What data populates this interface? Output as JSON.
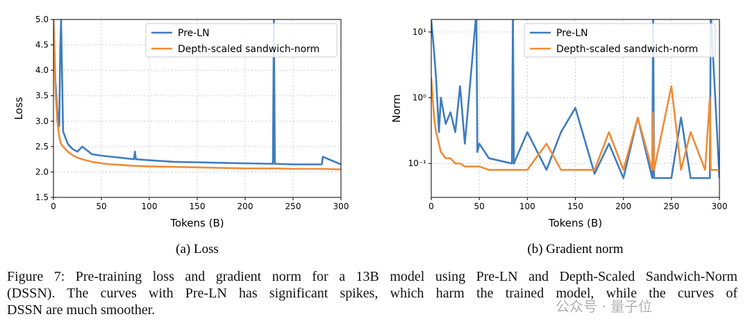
{
  "chart_data": [
    {
      "type": "line",
      "caption": "(a) Loss",
      "xlabel": "Tokens (B)",
      "ylabel": "Loss",
      "x": [
        0,
        2,
        4,
        6,
        7,
        8,
        10,
        15,
        20,
        25,
        30,
        40,
        50,
        60,
        70,
        84,
        85,
        86,
        100,
        125,
        150,
        175,
        200,
        229,
        230,
        231,
        250,
        275,
        280,
        281,
        300
      ],
      "series": [
        {
          "name": "Pre-LN",
          "color": "#3f7cbf",
          "values": [
            5.0,
            3.8,
            3.2,
            2.9,
            4.4,
            5.0,
            2.8,
            2.55,
            2.45,
            2.4,
            2.5,
            2.35,
            2.32,
            2.3,
            2.28,
            2.25,
            2.4,
            2.25,
            2.23,
            2.2,
            2.19,
            2.18,
            2.17,
            2.16,
            5.0,
            2.16,
            2.15,
            2.15,
            2.15,
            2.3,
            2.15
          ]
        },
        {
          "name": "Depth-scaled sandwich-norm",
          "color": "#ef8c36",
          "values": [
            5.0,
            3.6,
            3.0,
            2.7,
            2.6,
            2.55,
            2.5,
            2.4,
            2.33,
            2.28,
            2.25,
            2.2,
            2.17,
            2.15,
            2.14,
            2.12,
            2.12,
            2.12,
            2.11,
            2.1,
            2.09,
            2.08,
            2.07,
            2.07,
            2.07,
            2.07,
            2.06,
            2.06,
            2.06,
            2.06,
            2.05
          ]
        }
      ],
      "xlim": [
        0,
        300
      ],
      "xticks": [
        0,
        50,
        100,
        150,
        200,
        250,
        300
      ],
      "ylim": [
        1.5,
        5.0
      ],
      "yticks": [
        1.5,
        {
          "value": 2,
          "label": "2.0"
        },
        2.5,
        {
          "value": 3,
          "label": "3.0"
        },
        3.5,
        {
          "value": 4,
          "label": "4.0"
        },
        4.5,
        {
          "value": 5,
          "label": "5.0"
        }
      ],
      "yscale": "linear",
      "grid": true,
      "legend": "upper right"
    },
    {
      "type": "line",
      "caption": "(b) Gradient norm",
      "xlabel": "Tokens (B)",
      "ylabel": "Norm",
      "x": [
        0,
        3,
        5,
        8,
        10,
        15,
        20,
        25,
        30,
        35,
        47,
        48,
        50,
        60,
        84,
        85,
        86,
        100,
        120,
        135,
        150,
        170,
        185,
        200,
        215,
        230,
        231,
        232,
        250,
        260,
        270,
        285,
        290,
        291,
        300
      ],
      "series": [
        {
          "name": "Pre-LN",
          "color": "#3f7cbf",
          "values": [
            15,
            5,
            2,
            0.3,
            1,
            0.4,
            0.6,
            0.3,
            1.5,
            0.2,
            20,
            0.15,
            0.2,
            0.12,
            0.1,
            20,
            0.1,
            0.3,
            0.08,
            0.3,
            0.7,
            0.07,
            0.2,
            0.06,
            0.5,
            0.06,
            20,
            0.06,
            0.06,
            0.5,
            0.06,
            0.06,
            0.06,
            20,
            0.06
          ]
        },
        {
          "name": "Depth-scaled sandwich-norm",
          "color": "#ef8c36",
          "values": [
            2,
            0.5,
            0.3,
            0.2,
            0.15,
            0.12,
            0.12,
            0.1,
            0.1,
            0.09,
            0.09,
            0.09,
            0.09,
            0.08,
            0.08,
            0.08,
            0.08,
            0.08,
            0.2,
            0.08,
            0.08,
            0.08,
            0.3,
            0.08,
            0.5,
            0.08,
            0.6,
            0.08,
            1.5,
            0.08,
            0.3,
            0.08,
            1.0,
            0.08,
            0.08
          ]
        }
      ],
      "xlim": [
        0,
        300
      ],
      "xticks": [
        0,
        50,
        100,
        150,
        200,
        250,
        300
      ],
      "ylim": [
        0.0305,
        15.5
      ],
      "yticks": [
        {
          "value": 0.1,
          "label": "10⁻¹"
        },
        {
          "value": 1,
          "label": "10⁰"
        },
        {
          "value": 10,
          "label": "10¹"
        }
      ],
      "yscale": "log",
      "grid": true,
      "legend": "upper right"
    }
  ],
  "caption_lines": [
    "Figure 7: Pre-training loss and gradient norm for a 13B model using Pre-LN and Depth-Scaled Sandwich-Norm",
    "(DSSN). The curves with Pre-LN has significant spikes, which harm the trained model, while the curves of",
    "DSSN are much smoother."
  ],
  "watermark": "公众号 · 量子位"
}
